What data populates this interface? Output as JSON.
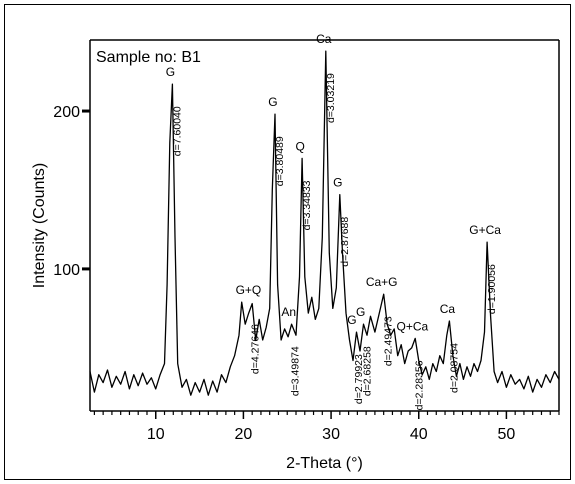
{
  "chart_data": {
    "type": "line",
    "sample_label": "Sample no: B1",
    "xlabel": "2-Theta (°)",
    "ylabel": "Intensity (Counts)",
    "xlim": [
      2.5,
      56
    ],
    "ylim": [
      10,
      245
    ],
    "x_ticks": [
      10,
      20,
      30,
      40,
      50
    ],
    "y_ticks": [
      100,
      200
    ],
    "grid": false,
    "series": [
      {
        "points": [
          [
            2.5,
            35
          ],
          [
            3.0,
            22
          ],
          [
            3.5,
            33
          ],
          [
            4.0,
            28
          ],
          [
            4.5,
            36
          ],
          [
            5.0,
            25
          ],
          [
            5.5,
            32
          ],
          [
            6.0,
            27
          ],
          [
            6.5,
            35
          ],
          [
            7.0,
            24
          ],
          [
            7.5,
            33
          ],
          [
            8.0,
            26
          ],
          [
            8.5,
            34
          ],
          [
            9.0,
            27
          ],
          [
            9.5,
            31
          ],
          [
            10.0,
            24
          ],
          [
            10.5,
            33
          ],
          [
            11.0,
            40
          ],
          [
            11.3,
            90
          ],
          [
            11.6,
            180
          ],
          [
            11.9,
            217
          ],
          [
            12.2,
            120
          ],
          [
            12.5,
            40
          ],
          [
            13.0,
            25
          ],
          [
            13.5,
            30
          ],
          [
            14.0,
            20
          ],
          [
            14.5,
            28
          ],
          [
            15.0,
            22
          ],
          [
            15.5,
            30
          ],
          [
            16.0,
            20
          ],
          [
            16.5,
            29
          ],
          [
            17.0,
            22
          ],
          [
            17.5,
            33
          ],
          [
            18.0,
            28
          ],
          [
            18.5,
            38
          ],
          [
            19.0,
            45
          ],
          [
            19.5,
            58
          ],
          [
            19.8,
            79
          ],
          [
            20.2,
            65
          ],
          [
            20.6,
            72
          ],
          [
            21.0,
            78
          ],
          [
            21.4,
            55
          ],
          [
            21.8,
            68
          ],
          [
            22.2,
            55
          ],
          [
            22.6,
            63
          ],
          [
            23.0,
            75
          ],
          [
            23.3,
            150
          ],
          [
            23.6,
            198
          ],
          [
            23.9,
            90
          ],
          [
            24.3,
            55
          ],
          [
            24.7,
            62
          ],
          [
            25.1,
            57
          ],
          [
            25.5,
            65
          ],
          [
            26.0,
            58
          ],
          [
            26.4,
            95
          ],
          [
            26.7,
            170
          ],
          [
            27.0,
            95
          ],
          [
            27.4,
            72
          ],
          [
            27.8,
            82
          ],
          [
            28.2,
            68
          ],
          [
            28.6,
            75
          ],
          [
            29.0,
            120
          ],
          [
            29.4,
            238
          ],
          [
            29.8,
            110
          ],
          [
            30.2,
            75
          ],
          [
            30.6,
            88
          ],
          [
            31.0,
            147
          ],
          [
            31.3,
            110
          ],
          [
            31.7,
            72
          ],
          [
            32.1,
            55
          ],
          [
            32.5,
            42
          ],
          [
            32.9,
            60
          ],
          [
            33.3,
            48
          ],
          [
            33.7,
            65
          ],
          [
            34.1,
            58
          ],
          [
            34.5,
            70
          ],
          [
            35.0,
            60
          ],
          [
            35.5,
            72
          ],
          [
            36.0,
            84
          ],
          [
            36.4,
            65
          ],
          [
            36.8,
            58
          ],
          [
            37.2,
            62
          ],
          [
            37.6,
            45
          ],
          [
            38.0,
            52
          ],
          [
            38.4,
            40
          ],
          [
            38.8,
            48
          ],
          [
            39.2,
            50
          ],
          [
            39.6,
            56
          ],
          [
            40.0,
            42
          ],
          [
            40.4,
            33
          ],
          [
            40.8,
            38
          ],
          [
            41.2,
            30
          ],
          [
            41.6,
            40
          ],
          [
            42.0,
            35
          ],
          [
            42.4,
            45
          ],
          [
            42.8,
            40
          ],
          [
            43.2,
            58
          ],
          [
            43.5,
            67
          ],
          [
            43.9,
            45
          ],
          [
            44.3,
            32
          ],
          [
            44.7,
            40
          ],
          [
            45.1,
            30
          ],
          [
            45.5,
            38
          ],
          [
            45.9,
            32
          ],
          [
            46.3,
            40
          ],
          [
            46.7,
            35
          ],
          [
            47.1,
            42
          ],
          [
            47.5,
            60
          ],
          [
            47.8,
            117
          ],
          [
            48.2,
            70
          ],
          [
            48.6,
            35
          ],
          [
            49.0,
            28
          ],
          [
            49.5,
            35
          ],
          [
            50.0,
            25
          ],
          [
            50.5,
            33
          ],
          [
            51.0,
            27
          ],
          [
            51.5,
            30
          ],
          [
            52.0,
            24
          ],
          [
            52.5,
            32
          ],
          [
            53.0,
            22
          ],
          [
            53.5,
            30
          ],
          [
            54.0,
            25
          ],
          [
            54.5,
            33
          ],
          [
            55.0,
            28
          ],
          [
            55.5,
            35
          ],
          [
            56.0,
            30
          ]
        ]
      }
    ],
    "peaks": [
      {
        "x": 11.9,
        "y": 217,
        "phase": "G",
        "d": "d=7.60040"
      },
      {
        "x": 20.8,
        "y": 79,
        "phase": "G+Q",
        "d": "d=4.27646"
      },
      {
        "x": 23.6,
        "y": 198,
        "phase": "G",
        "d": "d=3.80489"
      },
      {
        "x": 26.7,
        "y": 170,
        "phase": "Q",
        "d": "d=3.34833"
      },
      {
        "x": 25.4,
        "y": 65,
        "phase": "An",
        "d": "d=3.49874"
      },
      {
        "x": 29.4,
        "y": 238,
        "phase": "Ca",
        "d": "d=3.03219"
      },
      {
        "x": 31.0,
        "y": 147,
        "phase": "G",
        "d": "d=2.87688"
      },
      {
        "x": 32.6,
        "y": 60,
        "phase": "G",
        "d": "d=2.79923"
      },
      {
        "x": 33.6,
        "y": 65,
        "phase": "G",
        "d": "d=2.68258"
      },
      {
        "x": 36.0,
        "y": 84,
        "phase": "Ca+G",
        "d": "d=2.49473"
      },
      {
        "x": 39.5,
        "y": 56,
        "phase": "Q+Ca",
        "d": "d=2.28356"
      },
      {
        "x": 43.5,
        "y": 67,
        "phase": "Ca",
        "d": "d=2.08754"
      },
      {
        "x": 47.8,
        "y": 117,
        "phase": "G+Ca",
        "d": "d=1.90056"
      }
    ]
  }
}
